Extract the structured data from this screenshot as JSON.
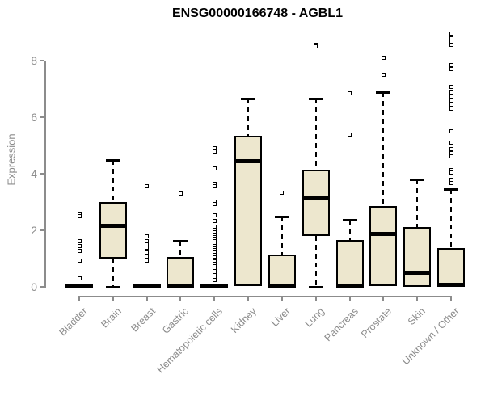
{
  "title": "ENSG00000166748 - AGBL1",
  "colors": {
    "box_fill": "#ede7ce",
    "box_border": "#000000",
    "median": "#000000",
    "axis": "#8c8c8c",
    "tick_label": "#8c8c8c",
    "title_text": "#000000",
    "background": "#ffffff"
  },
  "chart_data": {
    "type": "boxplot",
    "title": "ENSG00000166748 - AGBL1",
    "xlabel": "",
    "ylabel": "Expression",
    "ylim": [
      0,
      9
    ],
    "yticks": [
      0,
      2,
      4,
      6,
      8
    ],
    "grid": false,
    "legend": "none",
    "categories": [
      "Bladder",
      "Brain",
      "Breast",
      "Gastric",
      "Hematopoietic cells",
      "Kidney",
      "Liver",
      "Lung",
      "Pancreas",
      "Prostate",
      "Skin",
      "Unknown / Other"
    ],
    "series": [
      {
        "label": "Bladder",
        "whisker_low": 0,
        "q1": 0,
        "median": 0.04,
        "q3": 0.08,
        "whisker_high": 0.08,
        "outliers": [
          2.6,
          2.49,
          1.62,
          1.45,
          1.26,
          0.92,
          0.3
        ]
      },
      {
        "label": "Brain",
        "whisker_low": 0,
        "q1": 1.0,
        "median": 2.15,
        "q3": 3.0,
        "whisker_high": 4.5,
        "outliers": []
      },
      {
        "label": "Breast",
        "whisker_low": 0,
        "q1": 0,
        "median": 0.04,
        "q3": 0.08,
        "whisker_high": 0.08,
        "outliers": [
          3.57,
          1.8,
          1.62,
          1.5,
          1.38,
          1.22,
          1.08,
          0.94
        ]
      },
      {
        "label": "Gastric",
        "whisker_low": 0,
        "q1": 0,
        "median": 0.05,
        "q3": 1.05,
        "whisker_high": 1.62,
        "outliers": [
          3.3
        ]
      },
      {
        "label": "Hematopoietic cells",
        "whisker_low": 0,
        "q1": 0,
        "median": 0.04,
        "q3": 0.08,
        "whisker_high": 0.08,
        "outliers": [
          4.9,
          4.79,
          4.19,
          3.65,
          3.55,
          3.02,
          2.92,
          2.52,
          2.33,
          2.14,
          2.0,
          1.93,
          1.85,
          1.77,
          1.69,
          1.61,
          1.53,
          1.45,
          1.37,
          1.29,
          1.21,
          1.13,
          1.05,
          0.97,
          0.89,
          0.81,
          0.73,
          0.65,
          0.57,
          0.49,
          0.41,
          0.33,
          0.25
        ]
      },
      {
        "label": "Kidney",
        "whisker_low": 0.03,
        "q1": 0.03,
        "median": 4.43,
        "q3": 5.33,
        "whisker_high": 6.65,
        "outliers": []
      },
      {
        "label": "Liver",
        "whisker_low": 0,
        "q1": 0,
        "median": 0.05,
        "q3": 1.14,
        "whisker_high": 2.48,
        "outliers": [
          3.33
        ]
      },
      {
        "label": "Lung",
        "whisker_low": 0,
        "q1": 1.81,
        "median": 3.17,
        "q3": 4.14,
        "whisker_high": 6.67,
        "outliers": [
          8.56,
          8.5
        ]
      },
      {
        "label": "Pancreas",
        "whisker_low": 0,
        "q1": 0,
        "median": 0.05,
        "q3": 1.66,
        "whisker_high": 2.37,
        "outliers": [
          6.85,
          5.38
        ]
      },
      {
        "label": "Prostate",
        "whisker_low": 0.03,
        "q1": 0.03,
        "median": 1.86,
        "q3": 2.86,
        "whisker_high": 6.9,
        "outliers": [
          8.1,
          7.5
        ]
      },
      {
        "label": "Skin",
        "whisker_low": 0,
        "q1": 0,
        "median": 0.5,
        "q3": 2.12,
        "whisker_high": 3.8,
        "outliers": []
      },
      {
        "label": "Unknown / Other",
        "whisker_low": 0,
        "q1": 0,
        "median": 0.06,
        "q3": 1.38,
        "whisker_high": 3.47,
        "outliers": [
          8.95,
          8.78,
          8.67,
          8.56,
          7.85,
          7.7,
          7.06,
          6.87,
          6.72,
          6.58,
          6.45,
          6.31,
          5.5,
          5.1,
          4.87,
          4.74,
          4.62,
          4.14,
          4.03,
          3.8,
          3.68
        ]
      }
    ]
  }
}
